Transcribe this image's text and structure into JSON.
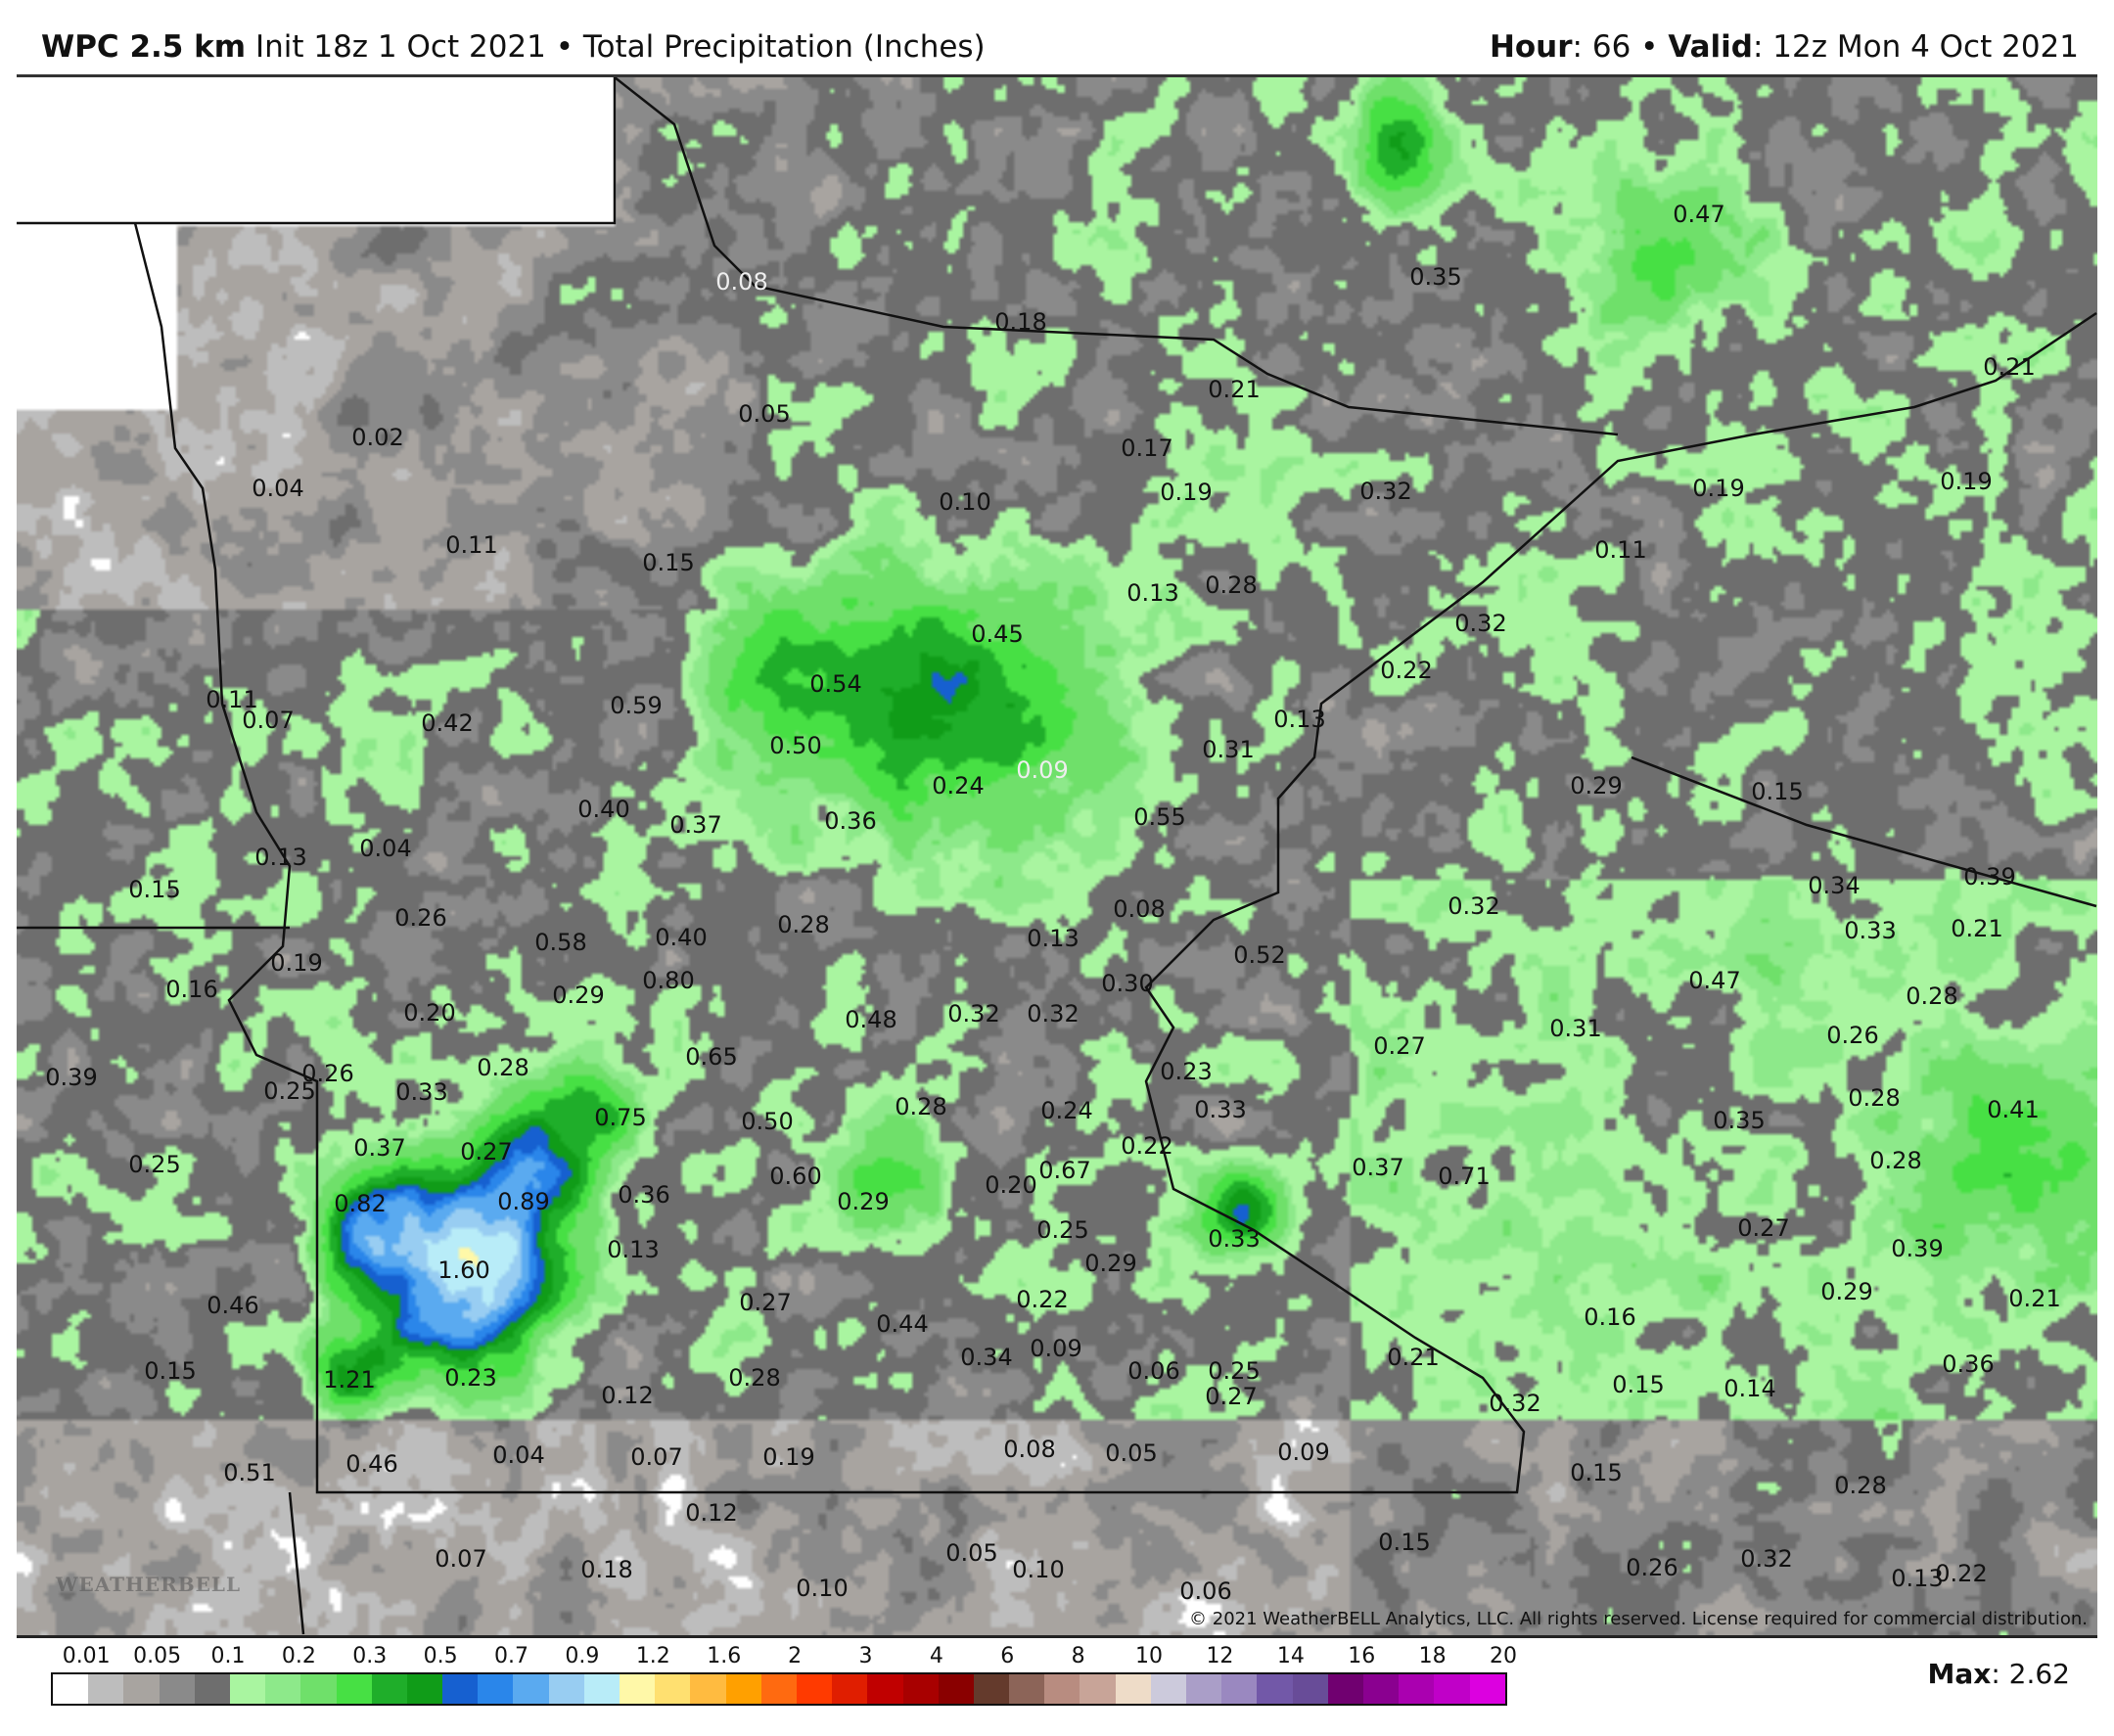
{
  "header": {
    "model": "WPC 2.5 km",
    "init": "Init 18z 1 Oct 2021",
    "separator": "•",
    "product": "Total Precipitation (Inches)",
    "hour_label": "Hour",
    "hour_value": ": 66",
    "valid_label": "Valid",
    "valid_value": ": 12z Mon 4 Oct 2021"
  },
  "map": {
    "copyright": "© 2021 WeatherBELL Analytics, LLC. All rights reserved. License required for commercial distribution.",
    "logo": "WEATHERBELL",
    "point_values": [
      "0.08",
      "0.18",
      "0.47",
      "0.35",
      "0.21",
      "0.21",
      "0.05",
      "0.02",
      "0.04",
      "0.17",
      "0.19",
      "0.32",
      "0.19",
      "0.19",
      "0.10",
      "0.11",
      "0.15",
      "0.11",
      "0.13",
      "0.28",
      "0.32",
      "0.45",
      "0.22",
      "0.54",
      "0.59",
      "0.11",
      "0.07",
      "0.42",
      "0.13",
      "0.50",
      "0.31",
      "0.09",
      "0.24",
      "0.29",
      "0.15",
      "0.40",
      "0.37",
      "0.36",
      "0.55",
      "0.13",
      "0.04",
      "0.15",
      "0.08",
      "0.32",
      "0.34",
      "0.39",
      "0.33",
      "0.21",
      "0.26",
      "0.28",
      "0.13",
      "0.58",
      "0.40",
      "0.52",
      "0.19",
      "0.80",
      "0.30",
      "0.47",
      "0.16",
      "0.29",
      "0.28",
      "0.20",
      "0.48",
      "0.32",
      "0.32",
      "0.31",
      "0.26",
      "0.27",
      "0.65",
      "0.39",
      "0.26",
      "0.25",
      "0.28",
      "0.33",
      "0.23",
      "0.28",
      "0.75",
      "0.50",
      "0.28",
      "0.24",
      "0.33",
      "0.35",
      "0.41",
      "0.37",
      "0.27",
      "0.22",
      "0.25",
      "0.60",
      "0.67",
      "0.20",
      "0.37",
      "0.71",
      "0.28",
      "0.82",
      "0.89",
      "0.36",
      "0.29",
      "0.13",
      "0.25",
      "0.33",
      "0.27",
      "0.39",
      "1.60",
      "0.29",
      "0.46",
      "0.27",
      "0.22",
      "0.29",
      "0.21",
      "0.16",
      "0.44",
      "0.34",
      "0.09",
      "0.21",
      "0.15",
      "1.21",
      "0.23",
      "0.06",
      "0.25",
      "0.27",
      "0.28",
      "0.12",
      "0.15",
      "0.14",
      "0.36",
      "0.32",
      "0.04",
      "0.07",
      "0.19",
      "0.08",
      "0.05",
      "0.09",
      "0.51",
      "0.46",
      "0.15",
      "0.28",
      "0.12",
      "0.07",
      "0.18",
      "0.05",
      "0.10",
      "0.10",
      "0.15",
      "0.06",
      "0.26",
      "0.32",
      "0.13",
      "0.22"
    ]
  },
  "legend": {
    "labels": [
      "0.01",
      "0.05",
      "0.1",
      "0.2",
      "0.3",
      "0.5",
      "0.7",
      "0.9",
      "1.2",
      "1.6",
      "2",
      "3",
      "4",
      "6",
      "8",
      "10",
      "12",
      "14",
      "16",
      "18",
      "20"
    ],
    "colors": [
      "#ffffff",
      "#bdbdbd",
      "#a8a4a0",
      "#8a8a8a",
      "#6e6e6e",
      "#a9f5a0",
      "#8de98a",
      "#6fe06a",
      "#47e044",
      "#1fae2a",
      "#109c18",
      "#1660d0",
      "#2a86ea",
      "#5aaaf0",
      "#98cdf2",
      "#b8ecf8",
      "#fff8a8",
      "#ffe070",
      "#ffbb40",
      "#ffa000",
      "#ff6a10",
      "#ff3a00",
      "#e01e00",
      "#c00000",
      "#a80000",
      "#8a0000",
      "#643a2c",
      "#8c6458",
      "#b88c80",
      "#c8a498",
      "#eedcc8",
      "#cccadc",
      "#aa9ec8",
      "#9a88c0",
      "#7258a8",
      "#684c98",
      "#700070",
      "#8a0090",
      "#aa00b0",
      "#c000c8",
      "#dc00e0"
    ],
    "max_label": "Max",
    "max_value": ": 2.62"
  }
}
